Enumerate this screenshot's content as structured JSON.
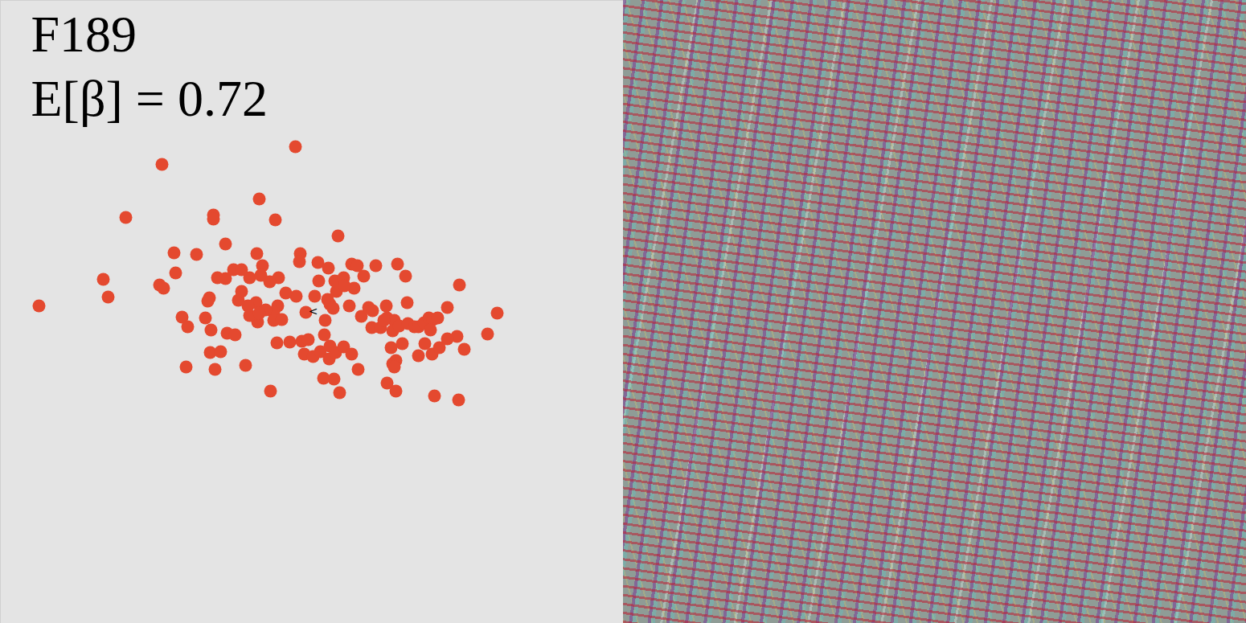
{
  "chart_data": {
    "type": "scatter",
    "title": "F189",
    "annotations": [
      {
        "text": "E[β] = 0.72"
      },
      {
        "text": "<",
        "x": 389,
        "y": 387
      }
    ],
    "x": [
      367,
      201,
      322,
      156,
      265,
      265,
      342,
      420,
      48,
      128,
      134,
      280,
      216,
      244,
      319,
      373,
      198,
      203,
      218,
      270,
      280,
      290,
      300,
      310,
      326,
      324,
      346,
      335,
      372,
      395,
      396,
      408,
      416,
      418,
      427,
      437,
      444,
      452,
      467,
      494,
      504,
      440,
      428,
      410,
      407,
      414,
      404,
      380,
      391,
      368,
      355,
      345,
      340,
      330,
      320,
      318,
      308,
      296,
      300,
      260,
      258,
      255,
      226,
      233,
      262,
      282,
      292,
      310,
      322,
      340,
      350,
      344,
      360,
      375,
      383,
      378,
      389,
      403,
      410,
      398,
      409,
      417,
      427,
      437,
      445,
      415,
      402,
      422,
      336,
      305,
      267,
      231,
      261,
      274,
      434,
      449,
      458,
      463,
      462,
      473,
      481,
      490,
      488,
      496,
      507,
      515,
      520,
      527,
      533,
      538,
      556,
      571,
      544,
      535,
      568,
      577,
      606,
      618,
      528,
      537,
      546,
      520,
      500,
      486,
      492,
      488,
      490,
      481,
      492,
      540,
      570,
      480,
      477,
      556,
      506
    ],
    "y": [
      182,
      204,
      247,
      270,
      267,
      272,
      273,
      293,
      380,
      347,
      369,
      303,
      314,
      316,
      315,
      315,
      354,
      358,
      339,
      345,
      346,
      335,
      335,
      345,
      330,
      342,
      345,
      350,
      325,
      326,
      349,
      333,
      349,
      362,
      345,
      328,
      330,
      343,
      330,
      328,
      343,
      358,
      355,
      378,
      372,
      383,
      398,
      388,
      368,
      368,
      364,
      380,
      388,
      385,
      400,
      376,
      380,
      373,
      362,
      370,
      374,
      395,
      394,
      406,
      410,
      414,
      416,
      392,
      389,
      398,
      397,
      426,
      425,
      424,
      422,
      440,
      443,
      416,
      430,
      437,
      446,
      438,
      431,
      440,
      459,
      471,
      470,
      488,
      486,
      454,
      459,
      456,
      438,
      437,
      380,
      393,
      382,
      386,
      407,
      407,
      395,
      398,
      411,
      405,
      402,
      406,
      406,
      401,
      395,
      397,
      382,
      354,
      395,
      410,
      418,
      434,
      415,
      389,
      427,
      440,
      432,
      442,
      427,
      432,
      448,
      452,
      456,
      476,
      486,
      492,
      497,
      380,
      398,
      421,
      376
    ],
    "xlim": [
      0,
      775
    ],
    "ylim": [
      775,
      0
    ],
    "tick_labels": false,
    "color": "#e4492f",
    "marker": "circle"
  }
}
